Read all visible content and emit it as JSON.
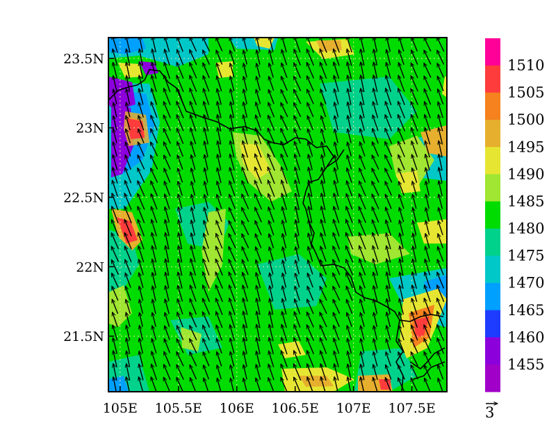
{
  "map": {
    "lon_range": [
      104.9,
      107.8
    ],
    "lat_range": [
      21.1,
      23.65
    ],
    "x_ticks": [
      {
        "value": 105.0,
        "label": "105E"
      },
      {
        "value": 105.5,
        "label": "105.5E"
      },
      {
        "value": 106.0,
        "label": "106E"
      },
      {
        "value": 106.5,
        "label": "106.5E"
      },
      {
        "value": 107.0,
        "label": "107E"
      },
      {
        "value": 107.5,
        "label": "107.5E"
      }
    ],
    "y_ticks": [
      {
        "value": 23.5,
        "label": "23.5N"
      },
      {
        "value": 23.0,
        "label": "23N"
      },
      {
        "value": 22.5,
        "label": "22.5N"
      },
      {
        "value": 22.0,
        "label": "22N"
      },
      {
        "value": 21.5,
        "label": "21.5N"
      }
    ],
    "grid": true,
    "vector_reference": "3",
    "vector_mean": [
      -1.0,
      3.0
    ]
  },
  "colorbar": {
    "labels": [
      "1510",
      "1505",
      "1500",
      "1495",
      "1490",
      "1485",
      "1480",
      "1475",
      "1470",
      "1465",
      "1460",
      "1455"
    ],
    "colors": [
      "#ff0099",
      "#ff3c3c",
      "#f5821e",
      "#e6af2d",
      "#e6e632",
      "#a0e632",
      "#00dc00",
      "#00d28c",
      "#00c8c8",
      "#00a0ff",
      "#1e3cff",
      "#8c00dc",
      "#a000c8"
    ]
  }
}
